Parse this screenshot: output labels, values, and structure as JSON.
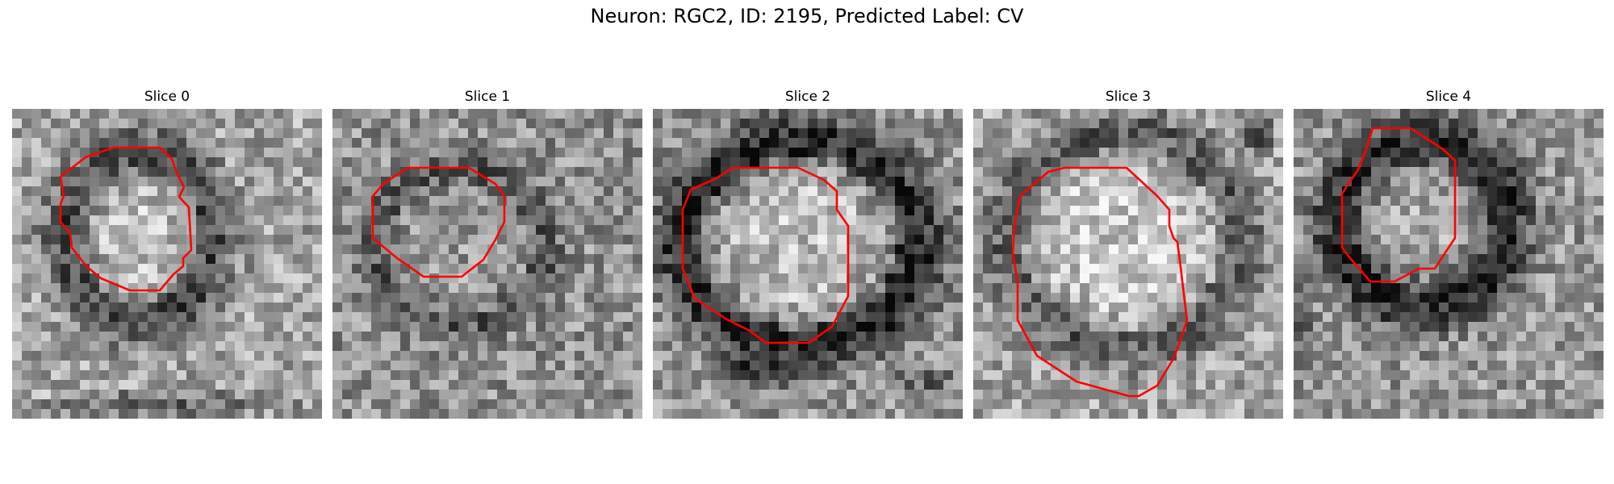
{
  "figure": {
    "title": "Neuron: RGC2, ID: 2195, Predicted Label: CV"
  },
  "panels": [
    {
      "title": "Slice 0"
    },
    {
      "title": "Slice 1"
    },
    {
      "title": "Slice 2"
    },
    {
      "title": "Slice 3"
    },
    {
      "title": "Slice 4"
    }
  ],
  "colors": {
    "contour": "#ff0000",
    "background": "#ffffff"
  }
}
